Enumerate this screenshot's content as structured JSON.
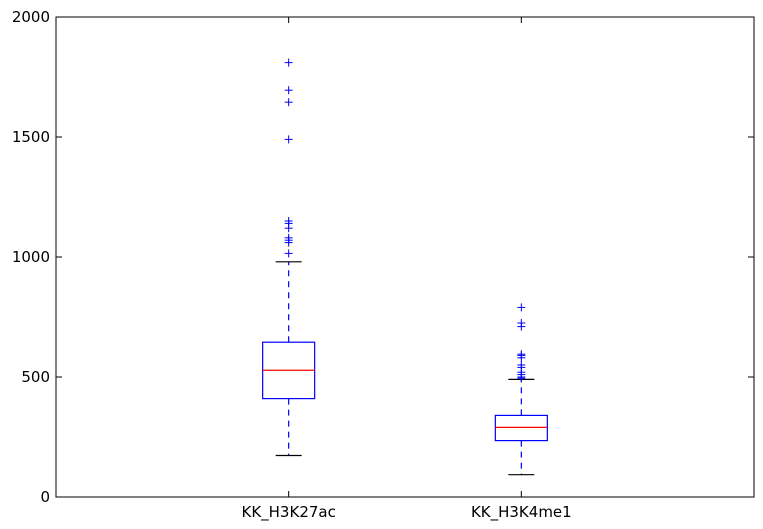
{
  "chart_data": {
    "type": "box",
    "title": "",
    "xlabel": "",
    "ylabel": "",
    "ylim": [
      0,
      2000
    ],
    "yticks": [
      0,
      500,
      1000,
      1500,
      2000
    ],
    "grid": false,
    "categories": [
      "KK_H3K27ac",
      "KK_H3K4me1"
    ],
    "boxes": [
      {
        "category": "KK_H3K27ac",
        "whisker_low": 173,
        "q1": 410,
        "median": 528,
        "q3": 645,
        "whisker_high": 980,
        "outliers": [
          1015,
          1060,
          1070,
          1080,
          1120,
          1140,
          1150,
          1490,
          1645,
          1695,
          1810
        ]
      },
      {
        "category": "KK_H3K4me1",
        "whisker_low": 93,
        "q1": 235,
        "median": 290,
        "q3": 340,
        "whisker_high": 490,
        "outliers": [
          495,
          500,
          510,
          520,
          540,
          550,
          580,
          590,
          595,
          710,
          725,
          790
        ]
      }
    ],
    "colors": {
      "box": "#0000ff",
      "median": "#ff0000",
      "whisker": "#0000ff",
      "cap": "#000000",
      "outlier": "#0000ff",
      "axes": "#000000"
    }
  }
}
